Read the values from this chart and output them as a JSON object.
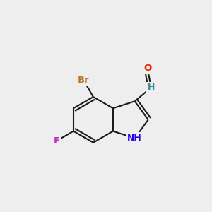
{
  "bg_color": "#eeeeee",
  "bond_color": "#1a1a1a",
  "bond_width": 1.5,
  "atom_colors": {
    "Br": "#b87a2a",
    "F": "#cc22cc",
    "N": "#2200ee",
    "O": "#ee2200",
    "H_cho": "#3a8888",
    "C": "#1a1a1a"
  },
  "fs": 9.0
}
